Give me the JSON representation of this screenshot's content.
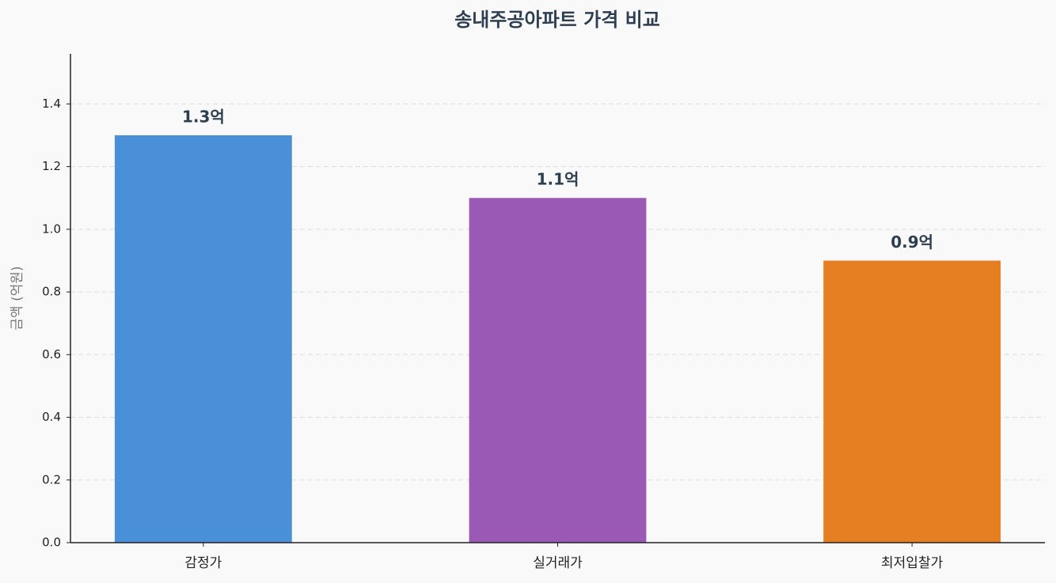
{
  "chart_data": {
    "type": "bar",
    "title": "송내주공아파트 가격 비교",
    "y_label": "금액 (억원)",
    "categories": [
      "감정가",
      "실거래가",
      "최저입찰가"
    ],
    "values": [
      1.3,
      1.1,
      0.9
    ],
    "value_labels": [
      "1.3억",
      "1.1억",
      "0.9억"
    ],
    "colors": [
      "#4a90d9",
      "#9b59b6",
      "#e67e22"
    ],
    "ylim": [
      0,
      1.56
    ],
    "yticks": [
      {
        "value": 0,
        "label": "0.0"
      },
      0.2,
      0.4,
      0.6,
      0.8,
      {
        "value": 1,
        "label": "1.0"
      },
      1.2,
      1.4
    ],
    "grid": true
  }
}
